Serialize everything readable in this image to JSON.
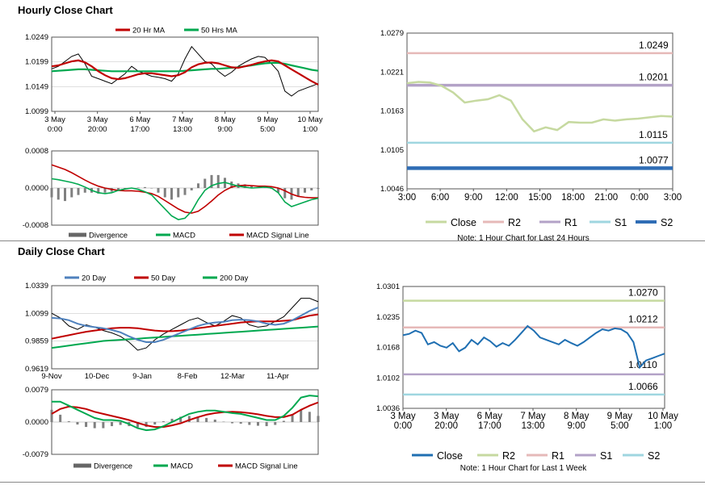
{
  "sections": {
    "hourly_title": "Hourly Close Chart",
    "daily_title": "Daily Close Chart"
  },
  "colors": {
    "ma_red": "#c00000",
    "ma_green": "#00a84f",
    "ma_blue": "#4f81bd",
    "close_green": "#c6d9a0",
    "close_blue": "#1f6fb2",
    "r2": "#e6b9b8",
    "r1": "#b3a2c7",
    "s1": "#9fd6e0",
    "s2": "#2f6db5",
    "r2_daily": "#c6d9a0",
    "r1_daily": "#e6b9b8",
    "s1_daily": "#b3a2c7",
    "s2_daily": "#9fd6e0",
    "divergence": "#808080"
  },
  "chart_data": [
    {
      "id": "hourly-price",
      "type": "line",
      "legend": [
        "20 Hr MA",
        "50 Hrs MA"
      ],
      "yticks": [
        "1.0249",
        "1.0199",
        "1.0149",
        "1.0099"
      ],
      "xticks": [
        [
          "3 May",
          "0:00"
        ],
        [
          "3 May",
          "20:00"
        ],
        [
          "6 May",
          "17:00"
        ],
        [
          "7 May",
          "13:00"
        ],
        [
          "8 May",
          "9:00"
        ],
        [
          "9 May",
          "5:00"
        ],
        [
          "10 May",
          "1:00"
        ]
      ],
      "ylim": [
        1.0099,
        1.0249
      ],
      "close": [
        1.0185,
        1.019,
        1.02,
        1.021,
        1.0215,
        1.0195,
        1.017,
        1.0165,
        1.016,
        1.0155,
        1.0165,
        1.0175,
        1.019,
        1.018,
        1.0175,
        1.017,
        1.0168,
        1.0165,
        1.016,
        1.0175,
        1.0205,
        1.023,
        1.0215,
        1.02,
        1.0195,
        1.018,
        1.017,
        1.0178,
        1.019,
        1.0198,
        1.0205,
        1.021,
        1.0208,
        1.0195,
        1.018,
        1.014,
        1.013,
        1.014,
        1.0145,
        1.015,
        1.0155
      ],
      "ma20": [
        1.019,
        1.0192,
        1.0196,
        1.02,
        1.0202,
        1.0198,
        1.019,
        1.018,
        1.0172,
        1.0166,
        1.0164,
        1.0166,
        1.017,
        1.0174,
        1.0176,
        1.0176,
        1.0174,
        1.0172,
        1.017,
        1.0172,
        1.0178,
        1.0188,
        1.0194,
        1.0197,
        1.0198,
        1.0196,
        1.0192,
        1.0188,
        1.0187,
        1.019,
        1.0193,
        1.0197,
        1.02,
        1.0202,
        1.02,
        1.0192,
        1.0184,
        1.0176,
        1.0168,
        1.016,
        1.0153
      ],
      "ma50": [
        1.018,
        1.0181,
        1.0182,
        1.0183,
        1.0184,
        1.0184,
        1.0183,
        1.0182,
        1.0181,
        1.018,
        1.018,
        1.018,
        1.018,
        1.018,
        1.018,
        1.018,
        1.018,
        1.018,
        1.018,
        1.018,
        1.0181,
        1.0182,
        1.0183,
        1.0184,
        1.0185,
        1.0185,
        1.0186,
        1.0187,
        1.0188,
        1.019,
        1.0192,
        1.0194,
        1.0196,
        1.0197,
        1.0197,
        1.0195,
        1.0192,
        1.0189,
        1.0186,
        1.0183,
        1.0181
      ]
    },
    {
      "id": "hourly-macd",
      "type": "line",
      "legend": [
        "Divergence",
        "MACD",
        "MACD Signal Line"
      ],
      "yticks": [
        "0.0008",
        "0.0000",
        "-0.0008"
      ],
      "ylim": [
        -0.0008,
        0.0008
      ],
      "macd": [
        0.0002,
        0.00018,
        0.00015,
        0.00012,
        8e-05,
        2e-05,
        -5e-05,
        -0.0001,
        -0.00012,
        -0.0001,
        -5e-05,
        -2e-05,
        0.0,
        -3e-05,
        -8e-05,
        -0.00015,
        -0.0003,
        -0.00045,
        -0.0006,
        -0.00068,
        -0.00065,
        -0.0005,
        -0.00025,
        -5e-05,
        5e-05,
        0.0001,
        0.00012,
        8e-05,
        4e-05,
        2e-05,
        0.0,
        1e-05,
        2e-05,
        0.0,
        -0.0001,
        -0.0003,
        -0.0004,
        -0.00035,
        -0.0003,
        -0.00025,
        -0.00022
      ],
      "signal": [
        0.0005,
        0.00045,
        0.0004,
        0.00033,
        0.00025,
        0.00017,
        0.0001,
        4e-05,
        0.0,
        -3e-05,
        -5e-05,
        -6e-05,
        -6e-05,
        -7e-05,
        -9e-05,
        -0.00012,
        -0.00018,
        -0.00027,
        -0.00036,
        -0.00045,
        -0.00052,
        -0.00054,
        -0.0005,
        -0.0004,
        -0.00028,
        -0.00015,
        -5e-05,
        2e-05,
        5e-05,
        6e-05,
        5e-05,
        4e-05,
        4e-05,
        3e-05,
        0.0,
        -6e-05,
        -0.00013,
        -0.00018,
        -0.0002,
        -0.00021,
        -0.00021
      ],
      "divergence": [
        -0.0002,
        -0.00025,
        -0.00028,
        -0.0002,
        -0.00015,
        -0.0001,
        -0.0001,
        -0.00012,
        -0.0001,
        -8e-05,
        -6e-05,
        -2e-05,
        0.0,
        1e-05,
        2e-05,
        0.0,
        -0.0001,
        -0.0002,
        -0.00025,
        -0.0002,
        -0.00015,
        -5e-05,
        0.0001,
        0.0002,
        0.00028,
        0.00028,
        0.00022,
        0.00014,
        0.0001,
        8e-05,
        4e-05,
        2e-05,
        2e-05,
        -2e-05,
        -0.0001,
        -0.00022,
        -0.00025,
        -0.00018,
        -0.0001,
        -5e-05,
        -2e-05
      ]
    },
    {
      "id": "hourly-pivot",
      "type": "line",
      "legend": [
        "Close",
        "R2",
        "R1",
        "S1",
        "S2"
      ],
      "note": "Note: 1 Hour Chart for Last 24 Hours",
      "yticks": [
        "1.0279",
        "1.0221",
        "1.0163",
        "1.0105",
        "1.0046"
      ],
      "xticks": [
        "3:00",
        "6:00",
        "9:00",
        "12:00",
        "15:00",
        "18:00",
        "21:00",
        "0:00",
        "3:00"
      ],
      "ylim": [
        1.0046,
        1.0279
      ],
      "levels": [
        {
          "name": "R2",
          "value": 1.0249,
          "label": "1.0249"
        },
        {
          "name": "R1",
          "value": 1.0201,
          "label": "1.0201"
        },
        {
          "name": "S1",
          "value": 1.0115,
          "label": "1.0115"
        },
        {
          "name": "S2",
          "value": 1.0077,
          "label": "1.0077"
        }
      ],
      "close": [
        1.0204,
        1.0206,
        1.0205,
        1.02,
        1.019,
        1.0175,
        1.0178,
        1.018,
        1.0186,
        1.0178,
        1.015,
        1.0132,
        1.0138,
        1.0134,
        1.0146,
        1.0145,
        1.0145,
        1.015,
        1.0148,
        1.015,
        1.0151,
        1.0153,
        1.0155,
        1.0154
      ]
    },
    {
      "id": "daily-price",
      "type": "line",
      "legend": [
        "20 Day",
        "50 Day",
        "200 Day"
      ],
      "yticks": [
        "1.0339",
        "1.0099",
        "0.9859",
        "0.9619"
      ],
      "xticks": [
        "9-Nov",
        "10-Dec",
        "9-Jan",
        "8-Feb",
        "12-Mar",
        "11-Apr"
      ],
      "ylim": [
        0.9619,
        1.0339
      ],
      "close": [
        1.01,
        1.006,
        0.999,
        0.996,
        1.0,
        0.998,
        0.995,
        0.993,
        0.99,
        0.985,
        0.978,
        0.98,
        0.987,
        0.992,
        0.996,
        1.0,
        1.004,
        1.006,
        1.002,
        0.999,
        1.003,
        1.008,
        1.006,
        1.0,
        0.998,
        0.999,
        1.003,
        1.007,
        1.015,
        1.023,
        1.023,
        1.02
      ],
      "ma20": [
        1.006,
        1.0055,
        1.004,
        1.001,
        0.999,
        0.998,
        0.997,
        0.9955,
        0.9935,
        0.99,
        0.987,
        0.985,
        0.985,
        0.987,
        0.99,
        0.993,
        0.996,
        0.999,
        1.001,
        1.002,
        1.0025,
        1.004,
        1.0045,
        1.004,
        1.003,
        1.001,
        1.0,
        1.001,
        1.004,
        1.008,
        1.012,
        1.015
      ],
      "ma50": [
        0.988,
        0.9895,
        0.991,
        0.9925,
        0.994,
        0.995,
        0.996,
        0.997,
        0.9975,
        0.9975,
        0.997,
        0.996,
        0.995,
        0.9945,
        0.9945,
        0.995,
        0.996,
        0.997,
        0.998,
        0.999,
        1.0,
        1.001,
        1.002,
        1.0025,
        1.003,
        1.003,
        1.003,
        1.0035,
        1.004,
        1.006,
        1.008,
        1.009
      ],
      "ma200": [
        0.98,
        0.981,
        0.982,
        0.983,
        0.984,
        0.985,
        0.986,
        0.9865,
        0.987,
        0.9875,
        0.988,
        0.9885,
        0.989,
        0.9895,
        0.99,
        0.9905,
        0.991,
        0.9915,
        0.992,
        0.9925,
        0.993,
        0.9935,
        0.994,
        0.9945,
        0.995,
        0.9955,
        0.996,
        0.9965,
        0.997,
        0.9975,
        0.998,
        0.9985
      ]
    },
    {
      "id": "daily-macd",
      "type": "line",
      "legend": [
        "Divergence",
        "MACD",
        "MACD Signal Line"
      ],
      "yticks": [
        "0.0079",
        "0.0000",
        "-0.0079"
      ],
      "ylim": [
        -0.0079,
        0.0079
      ],
      "macd": [
        0.005,
        0.005,
        0.004,
        0.003,
        0.002,
        0.001,
        0.0005,
        0.0005,
        0.0003,
        -0.0005,
        -0.0015,
        -0.002,
        -0.0018,
        -0.001,
        0.0,
        0.001,
        0.002,
        0.0025,
        0.0028,
        0.0028,
        0.0025,
        0.0022,
        0.002,
        0.0015,
        0.001,
        0.0005,
        0.0005,
        0.0015,
        0.0035,
        0.006,
        0.0065,
        0.0063
      ],
      "signal": [
        0.002,
        0.0032,
        0.0038,
        0.0036,
        0.0032,
        0.0025,
        0.002,
        0.0015,
        0.001,
        0.0005,
        -0.0002,
        -0.0008,
        -0.0012,
        -0.0012,
        -0.0008,
        -0.0003,
        0.0005,
        0.0012,
        0.0018,
        0.0022,
        0.0024,
        0.0025,
        0.0024,
        0.0022,
        0.0019,
        0.0015,
        0.0012,
        0.0012,
        0.0018,
        0.003,
        0.004,
        0.0048
      ],
      "divergence": [
        0.003,
        0.0018,
        0.0002,
        -0.0006,
        -0.0012,
        -0.0015,
        -0.0015,
        -0.001,
        -0.0007,
        -0.001,
        -0.0013,
        -0.0012,
        -0.0006,
        0.0002,
        0.0008,
        0.0013,
        0.0015,
        0.0013,
        0.001,
        0.0006,
        0.0001,
        -0.0003,
        -0.0004,
        -0.0007,
        -0.0009,
        -0.001,
        -0.0007,
        0.0003,
        0.0017,
        0.003,
        0.0025,
        0.0015
      ]
    },
    {
      "id": "daily-pivot",
      "type": "line",
      "legend": [
        "Close",
        "R2",
        "R1",
        "S1",
        "S2"
      ],
      "note": "Note: 1 Hour Chart for Last 1 Week",
      "yticks": [
        "1.0301",
        "1.0235",
        "1.0168",
        "1.0102",
        "1.0036"
      ],
      "xticks": [
        [
          "3 May",
          "0:00"
        ],
        [
          "3 May",
          "20:00"
        ],
        [
          "6 May",
          "17:00"
        ],
        [
          "7 May",
          "13:00"
        ],
        [
          "8 May",
          "9:00"
        ],
        [
          "9 May",
          "5:00"
        ],
        [
          "10 May",
          "1:00"
        ]
      ],
      "ylim": [
        1.0036,
        1.0301
      ],
      "levels": [
        {
          "name": "R2",
          "value": 1.027,
          "label": "1.0270"
        },
        {
          "name": "R1",
          "value": 1.0212,
          "label": "1.0212"
        },
        {
          "name": "S1",
          "value": 1.011,
          "label": "1.0110"
        },
        {
          "name": "S2",
          "value": 1.0066,
          "label": "1.0066"
        }
      ],
      "close": [
        1.0195,
        1.0198,
        1.0205,
        1.02,
        1.0175,
        1.018,
        1.0172,
        1.0168,
        1.0178,
        1.016,
        1.0168,
        1.0185,
        1.0175,
        1.019,
        1.0182,
        1.017,
        1.0178,
        1.0172,
        1.0185,
        1.02,
        1.0215,
        1.0205,
        1.019,
        1.0185,
        1.018,
        1.0175,
        1.0185,
        1.0178,
        1.0172,
        1.018,
        1.019,
        1.02,
        1.0208,
        1.0205,
        1.021,
        1.0208,
        1.02,
        1.018,
        1.0125,
        1.014,
        1.0145,
        1.015,
        1.0155
      ]
    }
  ]
}
